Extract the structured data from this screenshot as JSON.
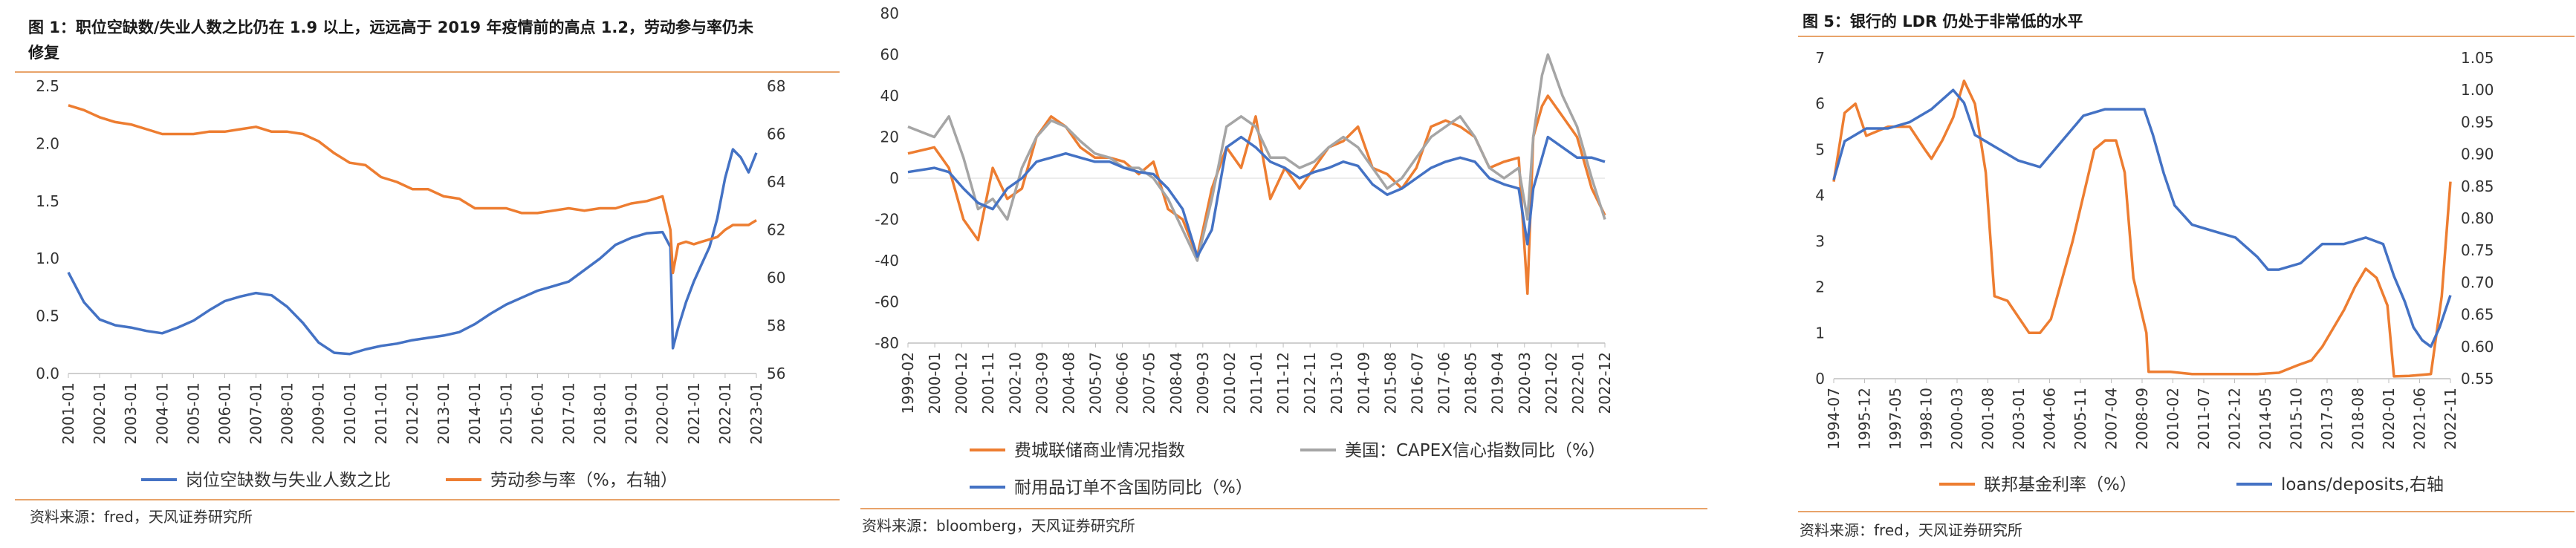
{
  "colors": {
    "blue": "#4472c4",
    "orange": "#ed7d31",
    "gray": "#a5a5a5",
    "rule": "#e8a36a"
  },
  "panel1": {
    "title_line1": "图 1：职位空缺数/失业人数之比仍在 1.9 以上，远远高于 2019 年疫情前的高点 1.2，劳动参与率仍未",
    "title_line2": "修复",
    "source": "资料来源：fred，天风证券研究所"
  },
  "panel2": {
    "source": "资料来源：bloomberg，天风证券研究所"
  },
  "panel3": {
    "title": "图 5：银行的 LDR 仍处于非常低的水平",
    "source": "资料来源：fred，天风证券研究所"
  },
  "chart_data": [
    {
      "type": "line",
      "title": "",
      "x_ticks": [
        "2001-01",
        "2002-01",
        "2003-01",
        "2004-01",
        "2005-01",
        "2006-01",
        "2007-01",
        "2008-01",
        "2009-01",
        "2010-01",
        "2011-01",
        "2012-01",
        "2013-01",
        "2014-01",
        "2015-01",
        "2016-01",
        "2017-01",
        "2018-01",
        "2019-01",
        "2020-01",
        "2021-01",
        "2022-01",
        "2023-01"
      ],
      "y_left": {
        "ticks": [
          "0.0",
          "0.5",
          "1.0",
          "1.5",
          "2.0",
          "2.5"
        ],
        "range": [
          0,
          2.5
        ]
      },
      "y_right": {
        "ticks": [
          "56",
          "58",
          "60",
          "62",
          "64",
          "66",
          "68"
        ],
        "range": [
          56,
          68
        ]
      },
      "grid": false,
      "legend_position": "bottom",
      "series": [
        {
          "name": "岗位空缺数与失业人数之比",
          "axis": "left",
          "color": "#4472c4",
          "x": [
            2001.0,
            2001.5,
            2002.0,
            2002.5,
            2003.0,
            2003.5,
            2004.0,
            2004.5,
            2005.0,
            2005.5,
            2006.0,
            2006.5,
            2007.0,
            2007.5,
            2008.0,
            2008.5,
            2009.0,
            2009.5,
            2010.0,
            2010.5,
            2011.0,
            2011.5,
            2012.0,
            2012.5,
            2013.0,
            2013.5,
            2014.0,
            2014.5,
            2015.0,
            2015.5,
            2016.0,
            2016.5,
            2017.0,
            2017.5,
            2018.0,
            2018.5,
            2019.0,
            2019.5,
            2020.0,
            2020.25,
            2020.33,
            2020.5,
            2020.75,
            2021.0,
            2021.25,
            2021.5,
            2021.75,
            2022.0,
            2022.25,
            2022.5,
            2022.75,
            2023.0
          ],
          "y": [
            0.88,
            0.62,
            0.47,
            0.42,
            0.4,
            0.37,
            0.35,
            0.4,
            0.46,
            0.55,
            0.63,
            0.67,
            0.7,
            0.68,
            0.58,
            0.44,
            0.27,
            0.18,
            0.17,
            0.21,
            0.24,
            0.26,
            0.29,
            0.31,
            0.33,
            0.36,
            0.43,
            0.52,
            0.6,
            0.66,
            0.72,
            0.76,
            0.8,
            0.9,
            1.0,
            1.12,
            1.18,
            1.22,
            1.23,
            1.1,
            0.22,
            0.4,
            0.62,
            0.8,
            0.95,
            1.1,
            1.35,
            1.7,
            1.95,
            1.88,
            1.75,
            1.92
          ]
        },
        {
          "name": "劳动参与率（%，右轴）",
          "axis": "right",
          "color": "#ed7d31",
          "x": [
            2001.0,
            2001.5,
            2002.0,
            2002.5,
            2003.0,
            2003.5,
            2004.0,
            2004.5,
            2005.0,
            2005.5,
            2006.0,
            2006.5,
            2007.0,
            2007.5,
            2008.0,
            2008.5,
            2009.0,
            2009.5,
            2010.0,
            2010.5,
            2011.0,
            2011.5,
            2012.0,
            2012.5,
            2013.0,
            2013.5,
            2014.0,
            2014.5,
            2015.0,
            2015.5,
            2016.0,
            2016.5,
            2017.0,
            2017.5,
            2018.0,
            2018.5,
            2019.0,
            2019.5,
            2020.0,
            2020.25,
            2020.33,
            2020.5,
            2020.75,
            2021.0,
            2021.25,
            2021.5,
            2021.75,
            2022.0,
            2022.25,
            2022.5,
            2022.75,
            2023.0
          ],
          "y": [
            67.2,
            67.0,
            66.7,
            66.5,
            66.4,
            66.2,
            66.0,
            66.0,
            66.0,
            66.1,
            66.1,
            66.2,
            66.3,
            66.1,
            66.1,
            66.0,
            65.7,
            65.2,
            64.8,
            64.7,
            64.2,
            64.0,
            63.7,
            63.7,
            63.4,
            63.3,
            62.9,
            62.9,
            62.9,
            62.7,
            62.7,
            62.8,
            62.9,
            62.8,
            62.9,
            62.9,
            63.1,
            63.2,
            63.4,
            62.0,
            60.2,
            61.4,
            61.5,
            61.4,
            61.5,
            61.6,
            61.7,
            62.0,
            62.2,
            62.2,
            62.2,
            62.4
          ]
        }
      ]
    },
    {
      "type": "line",
      "title": "",
      "x_ticks": [
        "1999-02",
        "2000-01",
        "2000-12",
        "2001-11",
        "2002-10",
        "2003-09",
        "2004-08",
        "2005-07",
        "2006-06",
        "2007-05",
        "2008-04",
        "2009-03",
        "2010-02",
        "2011-01",
        "2011-12",
        "2012-11",
        "2013-10",
        "2014-09",
        "2015-08",
        "2016-07",
        "2017-06",
        "2018-05",
        "2019-04",
        "2020-03",
        "2021-02",
        "2022-01",
        "2022-12"
      ],
      "y_left": {
        "ticks": [
          "-80",
          "-60",
          "-40",
          "-20",
          "0",
          "20",
          "40",
          "60",
          "80"
        ],
        "range": [
          -80,
          80
        ]
      },
      "grid": false,
      "legend_position": "bottom",
      "series": [
        {
          "name": "费城联储商业情况指数",
          "color": "#ed7d31",
          "x": [
            1999.1,
            2000.0,
            2000.5,
            2001.0,
            2001.5,
            2002.0,
            2002.5,
            2003.0,
            2003.5,
            2004.0,
            2004.5,
            2005.0,
            2005.5,
            2006.0,
            2006.5,
            2007.0,
            2007.5,
            2008.0,
            2008.5,
            2009.0,
            2009.5,
            2010.0,
            2010.5,
            2011.0,
            2011.5,
            2012.0,
            2012.5,
            2013.0,
            2013.5,
            2014.0,
            2014.5,
            2015.0,
            2015.5,
            2016.0,
            2016.5,
            2017.0,
            2017.5,
            2018.0,
            2018.5,
            2019.0,
            2019.5,
            2020.0,
            2020.3,
            2020.5,
            2020.8,
            2021.0,
            2021.5,
            2022.0,
            2022.5,
            2022.95
          ],
          "y": [
            12,
            15,
            5,
            -20,
            -30,
            5,
            -10,
            -5,
            20,
            30,
            25,
            15,
            10,
            10,
            8,
            2,
            8,
            -15,
            -20,
            -38,
            -5,
            15,
            5,
            30,
            -10,
            5,
            -5,
            5,
            15,
            18,
            25,
            5,
            2,
            -5,
            5,
            25,
            28,
            25,
            20,
            5,
            8,
            10,
            -56,
            20,
            35,
            40,
            30,
            20,
            -5,
            -18
          ]
        },
        {
          "name": "美国：CAPEX信心指数同比（%）",
          "color": "#a5a5a5",
          "x": [
            1999.1,
            2000.0,
            2000.5,
            2001.0,
            2001.5,
            2002.0,
            2002.5,
            2003.0,
            2003.5,
            2004.0,
            2004.5,
            2005.0,
            2005.5,
            2006.0,
            2006.5,
            2007.0,
            2007.5,
            2008.0,
            2008.5,
            2009.0,
            2009.5,
            2010.0,
            2010.5,
            2011.0,
            2011.5,
            2012.0,
            2012.5,
            2013.0,
            2013.5,
            2014.0,
            2014.5,
            2015.0,
            2015.5,
            2016.0,
            2016.5,
            2017.0,
            2017.5,
            2018.0,
            2018.5,
            2019.0,
            2019.5,
            2020.0,
            2020.3,
            2020.5,
            2020.8,
            2021.0,
            2021.5,
            2022.0,
            2022.5,
            2022.95
          ],
          "y": [
            25,
            20,
            30,
            10,
            -15,
            -10,
            -20,
            5,
            20,
            28,
            25,
            18,
            12,
            10,
            5,
            5,
            0,
            -10,
            -25,
            -40,
            -10,
            25,
            30,
            25,
            10,
            10,
            5,
            8,
            15,
            20,
            15,
            5,
            -5,
            0,
            10,
            20,
            25,
            30,
            20,
            5,
            0,
            5,
            -20,
            20,
            50,
            60,
            40,
            25,
            0,
            -20
          ]
        },
        {
          "name": "耐用品订单不含国防同比（%）",
          "color": "#4472c4",
          "x": [
            1999.1,
            2000.0,
            2000.5,
            2001.0,
            2001.5,
            2002.0,
            2002.5,
            2003.0,
            2003.5,
            2004.0,
            2004.5,
            2005.0,
            2005.5,
            2006.0,
            2006.5,
            2007.0,
            2007.5,
            2008.0,
            2008.5,
            2009.0,
            2009.5,
            2010.0,
            2010.5,
            2011.0,
            2011.5,
            2012.0,
            2012.5,
            2013.0,
            2013.5,
            2014.0,
            2014.5,
            2015.0,
            2015.5,
            2016.0,
            2016.5,
            2017.0,
            2017.5,
            2018.0,
            2018.5,
            2019.0,
            2019.5,
            2020.0,
            2020.3,
            2020.5,
            2020.8,
            2021.0,
            2021.5,
            2022.0,
            2022.5,
            2022.95
          ],
          "y": [
            3,
            5,
            3,
            -5,
            -12,
            -15,
            -5,
            0,
            8,
            10,
            12,
            10,
            8,
            8,
            5,
            3,
            2,
            -5,
            -15,
            -38,
            -25,
            15,
            20,
            15,
            8,
            5,
            0,
            3,
            5,
            8,
            6,
            -3,
            -8,
            -5,
            0,
            5,
            8,
            10,
            8,
            0,
            -3,
            -5,
            -32,
            -5,
            10,
            20,
            15,
            10,
            10,
            8
          ]
        }
      ]
    },
    {
      "type": "line",
      "title": "",
      "x_ticks": [
        "1994-07",
        "1995-12",
        "1997-05",
        "1998-10",
        "2000-03",
        "2001-08",
        "2003-01",
        "2004-06",
        "2005-11",
        "2007-04",
        "2008-09",
        "2010-02",
        "2011-07",
        "2012-12",
        "2014-05",
        "2015-10",
        "2017-03",
        "2018-08",
        "2020-01",
        "2021-06",
        "2022-11"
      ],
      "y_left": {
        "ticks": [
          "0",
          "1",
          "2",
          "3",
          "4",
          "5",
          "6",
          "7"
        ],
        "range": [
          0,
          7
        ]
      },
      "y_right": {
        "ticks": [
          "0.55",
          "0.60",
          "0.65",
          "0.70",
          "0.75",
          "0.80",
          "0.85",
          "0.90",
          "0.95",
          "1.00",
          "1.05"
        ],
        "range": [
          0.55,
          1.05
        ]
      },
      "grid": false,
      "legend_position": "bottom",
      "series": [
        {
          "name": "联邦基金利率（%）",
          "axis": "left",
          "color": "#ed7d31",
          "x": [
            1994.5,
            1995.0,
            1995.5,
            1996.0,
            1997.0,
            1998.0,
            1998.7,
            1999.0,
            1999.5,
            2000.0,
            2000.5,
            2001.0,
            2001.5,
            2001.9,
            2002.5,
            2003.5,
            2004.0,
            2004.5,
            2005.5,
            2006.5,
            2007.0,
            2007.5,
            2007.9,
            2008.3,
            2008.9,
            2009.0,
            2010.0,
            2011.0,
            2012.0,
            2013.0,
            2014.0,
            2015.0,
            2015.9,
            2016.5,
            2017.0,
            2017.5,
            2018.0,
            2018.5,
            2019.0,
            2019.5,
            2020.0,
            2020.3,
            2021.0,
            2022.0,
            2022.5,
            2022.9
          ],
          "y": [
            4.3,
            5.8,
            6.0,
            5.3,
            5.5,
            5.5,
            5.0,
            4.8,
            5.2,
            5.7,
            6.5,
            6.0,
            4.5,
            1.8,
            1.7,
            1.0,
            1.0,
            1.3,
            3.0,
            5.0,
            5.2,
            5.2,
            4.5,
            2.2,
            1.0,
            0.15,
            0.15,
            0.1,
            0.1,
            0.1,
            0.1,
            0.13,
            0.3,
            0.4,
            0.7,
            1.1,
            1.5,
            2.0,
            2.4,
            2.2,
            1.6,
            0.05,
            0.06,
            0.1,
            1.8,
            4.3
          ]
        },
        {
          "name": "loans/deposits,右轴",
          "axis": "right",
          "color": "#4472c4",
          "x": [
            1994.5,
            1995.0,
            1996.0,
            1997.0,
            1998.0,
            1999.0,
            2000.0,
            2000.5,
            2001.0,
            2002.0,
            2003.0,
            2004.0,
            2005.0,
            2006.0,
            2007.0,
            2008.0,
            2008.8,
            2009.2,
            2009.7,
            2010.2,
            2011.0,
            2012.0,
            2013.0,
            2014.0,
            2014.5,
            2015.0,
            2016.0,
            2017.0,
            2018.0,
            2019.0,
            2019.8,
            2020.3,
            2020.8,
            2021.2,
            2021.6,
            2022.0,
            2022.4,
            2022.9
          ],
          "y": [
            0.86,
            0.92,
            0.94,
            0.94,
            0.95,
            0.97,
            1.0,
            0.98,
            0.93,
            0.91,
            0.89,
            0.88,
            0.92,
            0.96,
            0.97,
            0.97,
            0.97,
            0.93,
            0.87,
            0.82,
            0.79,
            0.78,
            0.77,
            0.74,
            0.72,
            0.72,
            0.73,
            0.76,
            0.76,
            0.77,
            0.76,
            0.71,
            0.67,
            0.63,
            0.61,
            0.6,
            0.63,
            0.68
          ]
        }
      ]
    }
  ]
}
